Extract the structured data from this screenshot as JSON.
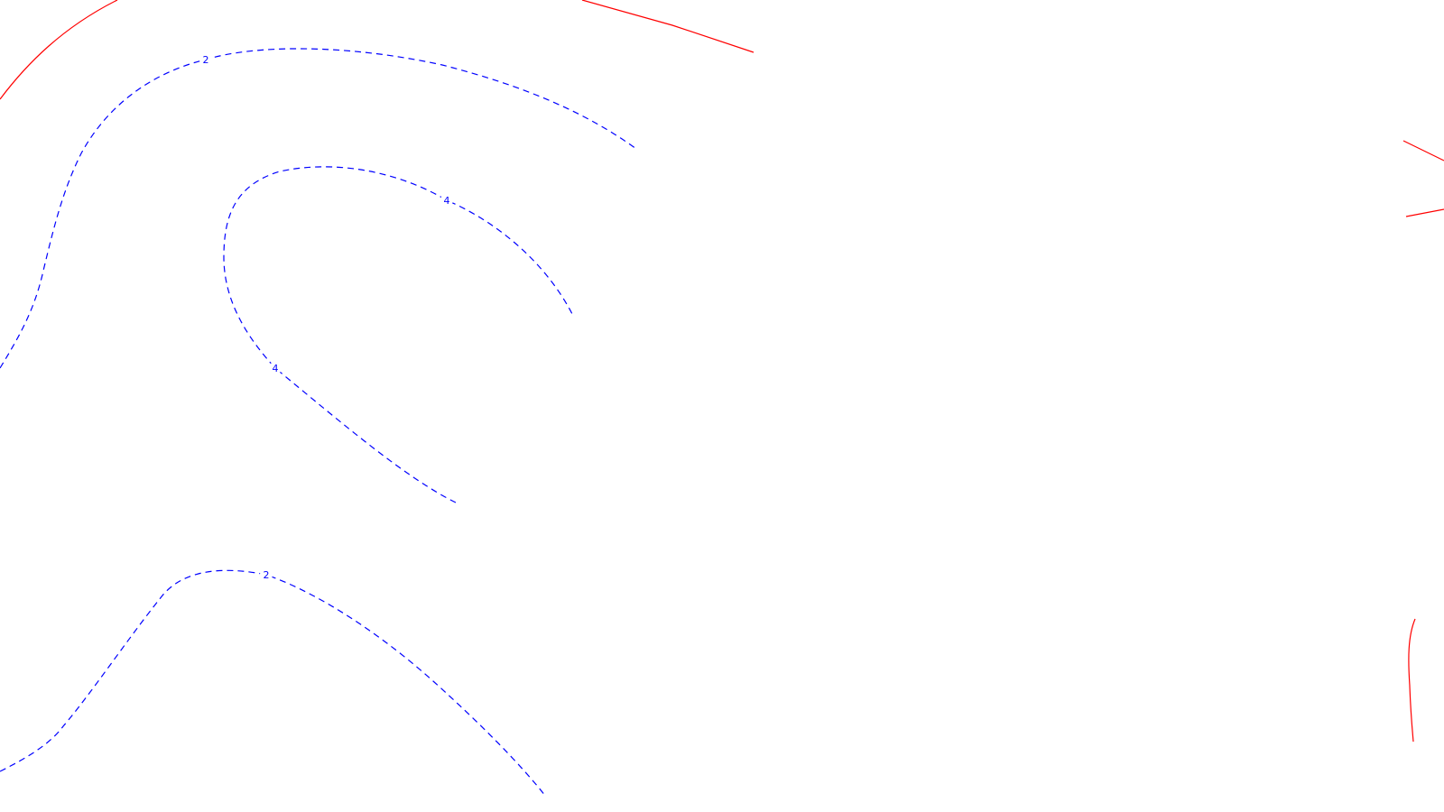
{
  "colors": {
    "background": "#ffffff",
    "negative_contour": "#0000ff",
    "positive_contour": "#ff0000"
  },
  "contours": {
    "level_2_upper": {
      "value": "2",
      "style": "dashed"
    },
    "level_4_inner": {
      "value": "4",
      "style": "dashed"
    },
    "level_2_lower": {
      "value": "2",
      "style": "dashed"
    },
    "red_solid": {
      "style": "solid"
    }
  },
  "labels": {
    "label_2_upper": "2",
    "label_4_right": "4",
    "label_4_left": "4",
    "label_2_lower": "2"
  }
}
